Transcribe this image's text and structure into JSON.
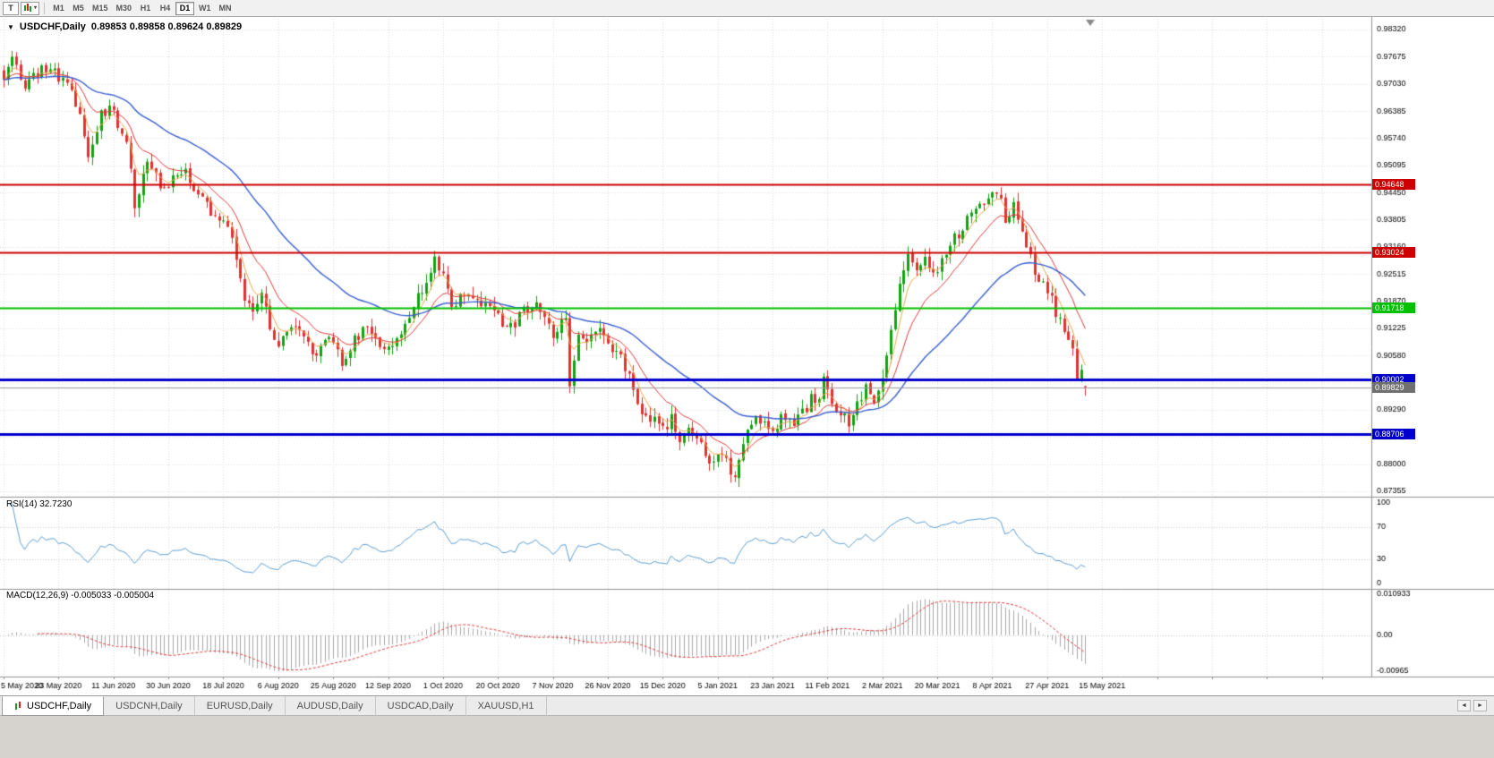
{
  "toolbar": {
    "tool_button": "T",
    "timeframes": [
      "M1",
      "M5",
      "M15",
      "M30",
      "H1",
      "H4",
      "D1",
      "W1",
      "MN"
    ],
    "active_timeframe": "D1"
  },
  "icons": {
    "title_dropdown": "▼",
    "chart_type_caret": "▾"
  },
  "chart": {
    "symbol_period": "USDCHF,Daily",
    "ohlc_text": "0.89853 0.89858 0.89624 0.89829"
  },
  "chart_data": {
    "type": "candlestick",
    "symbol": "USDCHF",
    "timeframe": "Daily",
    "bars": 257,
    "label_every_bars": 13,
    "x_labels": [
      "5 May 2020",
      "23 May 2020",
      "11 Jun 2020",
      "30 Jun 2020",
      "18 Jul 2020",
      "6 Aug 2020",
      "25 Aug 2020",
      "12 Sep 2020",
      "1 Oct 2020",
      "20 Oct 2020",
      "7 Nov 2020",
      "26 Nov 2020",
      "15 Dec 2020",
      "5 Jan 2021",
      "23 Jan 2021",
      "11 Feb 2021",
      "2 Mar 2021",
      "20 Mar 2021",
      "8 Apr 2021",
      "27 Apr 2021",
      "15 May 2021"
    ],
    "y_axis": {
      "min": 0.87355,
      "max": 0.9832,
      "step": 0.00645,
      "labels": [
        "0.98320",
        "0.97675",
        "0.97030",
        "0.96385",
        "0.95740",
        "0.95095",
        "0.94450",
        "0.93805",
        "0.93160",
        "0.92515",
        "0.91870",
        "0.91225",
        "0.90580",
        "0.89935",
        "0.89290",
        "0.88645",
        "0.88000",
        "0.87355"
      ]
    },
    "last_bar": {
      "open": 0.89853,
      "high": 0.89858,
      "low": 0.89624,
      "close": 0.89829
    },
    "colors": {
      "up": "#12a212",
      "down": "#e03232",
      "background": "#ffffff",
      "grid": "#dcdcdc"
    },
    "moving_averages": [
      {
        "name": "fast",
        "period": 5,
        "color": "#e8aa50",
        "width": 1
      },
      {
        "name": "medium",
        "period": 13,
        "color": "#dd3b3b",
        "width": 1
      },
      {
        "name": "slow",
        "period": 40,
        "color": "#3b5fd0",
        "width": 1.4
      }
    ],
    "horizontal_lines": [
      {
        "value": "0.94648",
        "price": 0.94648,
        "color": "#cc0000",
        "width": 2
      },
      {
        "value": "0.93024",
        "price": 0.93024,
        "color": "#cc0000",
        "width": 2
      },
      {
        "value": "0.91718",
        "price": 0.91718,
        "color": "#00c000",
        "width": 2
      },
      {
        "value": "0.90002",
        "price": 0.90002,
        "color": "#0000cc",
        "width": 3
      },
      {
        "value": "0.88706",
        "price": 0.88706,
        "color": "#0000cc",
        "width": 3
      }
    ],
    "current_price": {
      "value": "0.89829",
      "price": 0.89829,
      "line_color": "#9a9a9a",
      "tag_color": "#707070"
    },
    "price_path_keypoints": [
      [
        0,
        0.9725
      ],
      [
        2,
        0.9768
      ],
      [
        5,
        0.97
      ],
      [
        8,
        0.9732
      ],
      [
        11,
        0.9748
      ],
      [
        14,
        0.9705
      ],
      [
        17,
        0.966
      ],
      [
        20,
        0.954
      ],
      [
        23,
        0.9632
      ],
      [
        26,
        0.964
      ],
      [
        29,
        0.956
      ],
      [
        31,
        0.942
      ],
      [
        34,
        0.952
      ],
      [
        37,
        0.9465
      ],
      [
        40,
        0.947
      ],
      [
        43,
        0.9505
      ],
      [
        46,
        0.944
      ],
      [
        49,
        0.9395
      ],
      [
        52,
        0.9385
      ],
      [
        55,
        0.9295
      ],
      [
        57,
        0.92
      ],
      [
        59,
        0.9165
      ],
      [
        61,
        0.9205
      ],
      [
        63,
        0.913
      ],
      [
        65,
        0.9085
      ],
      [
        68,
        0.913
      ],
      [
        71,
        0.9095
      ],
      [
        74,
        0.9058
      ],
      [
        77,
        0.9095
      ],
      [
        80,
        0.9048
      ],
      [
        83,
        0.9095
      ],
      [
        86,
        0.9135
      ],
      [
        89,
        0.909
      ],
      [
        91,
        0.9068
      ],
      [
        94,
        0.9105
      ],
      [
        97,
        0.917
      ],
      [
        100,
        0.924
      ],
      [
        102,
        0.929
      ],
      [
        104,
        0.9248
      ],
      [
        106,
        0.9175
      ],
      [
        109,
        0.9212
      ],
      [
        112,
        0.9185
      ],
      [
        115,
        0.916
      ],
      [
        117,
        0.9148
      ],
      [
        120,
        0.9128
      ],
      [
        123,
        0.916
      ],
      [
        126,
        0.9188
      ],
      [
        128,
        0.915
      ],
      [
        130,
        0.9112
      ],
      [
        133,
        0.9148
      ],
      [
        134,
        0.8995
      ],
      [
        136,
        0.912
      ],
      [
        139,
        0.9095
      ],
      [
        141,
        0.9122
      ],
      [
        143,
        0.9085
      ],
      [
        146,
        0.9058
      ],
      [
        148,
        0.9
      ],
      [
        150,
        0.8955
      ],
      [
        152,
        0.8905
      ],
      [
        154,
        0.8928
      ],
      [
        156,
        0.8878
      ],
      [
        158,
        0.8905
      ],
      [
        160,
        0.885
      ],
      [
        162,
        0.8898
      ],
      [
        164,
        0.8868
      ],
      [
        166,
        0.882
      ],
      [
        168,
        0.8808
      ],
      [
        170,
        0.8832
      ],
      [
        173,
        0.8755
      ],
      [
        175,
        0.8845
      ],
      [
        177,
        0.8892
      ],
      [
        179,
        0.8905
      ],
      [
        181,
        0.8878
      ],
      [
        183,
        0.8888
      ],
      [
        185,
        0.8918
      ],
      [
        187,
        0.889
      ],
      [
        189,
        0.8922
      ],
      [
        191,
        0.8952
      ],
      [
        193,
        0.8968
      ],
      [
        194,
        0.8998
      ],
      [
        196,
        0.8952
      ],
      [
        198,
        0.892
      ],
      [
        200,
        0.8905
      ],
      [
        202,
        0.8942
      ],
      [
        204,
        0.8975
      ],
      [
        206,
        0.8958
      ],
      [
        208,
        0.9012
      ],
      [
        210,
        0.9105
      ],
      [
        212,
        0.9222
      ],
      [
        214,
        0.9295
      ],
      [
        216,
        0.9258
      ],
      [
        218,
        0.9292
      ],
      [
        220,
        0.9255
      ],
      [
        222,
        0.9282
      ],
      [
        224,
        0.9325
      ],
      [
        227,
        0.9365
      ],
      [
        230,
        0.94
      ],
      [
        233,
        0.9438
      ],
      [
        235,
        0.9455
      ],
      [
        237,
        0.938
      ],
      [
        239,
        0.9408
      ],
      [
        241,
        0.9352
      ],
      [
        243,
        0.9288
      ],
      [
        245,
        0.9242
      ],
      [
        247,
        0.921
      ],
      [
        249,
        0.9162
      ],
      [
        251,
        0.9128
      ],
      [
        253,
        0.9085
      ],
      [
        254,
        0.8995
      ],
      [
        255,
        0.9035
      ],
      [
        256,
        0.8985
      ]
    ],
    "indicators": [
      {
        "name": "RSI",
        "label": "RSI(14) 32.7230",
        "period": 14,
        "current_value": 32.723,
        "levels": [
          100,
          70,
          30,
          0
        ],
        "color": "#5e9fd4"
      },
      {
        "name": "MACD",
        "label": "MACD(12,26,9) -0.005033 -0.005004",
        "params": [
          12,
          26,
          9
        ],
        "current_values": [
          -0.005033,
          -0.005004
        ],
        "axis_labels": [
          "0.010933",
          "0.00",
          "-0.00965"
        ],
        "scale": {
          "max": 0.010933,
          "min": -0.00965
        },
        "histogram_color": "#a8a8a8",
        "signal_color": "#dd3b3b"
      }
    ]
  },
  "tabs": {
    "items": [
      {
        "label": "USDCHF,Daily",
        "active": true
      },
      {
        "label": "USDCNH,Daily",
        "active": false
      },
      {
        "label": "EURUSD,Daily",
        "active": false
      },
      {
        "label": "AUDUSD,Daily",
        "active": false
      },
      {
        "label": "USDCAD,Daily",
        "active": false
      },
      {
        "label": "XAUUSD,H1",
        "active": false
      }
    ],
    "scroll_left": "◄",
    "scroll_right": "►"
  }
}
